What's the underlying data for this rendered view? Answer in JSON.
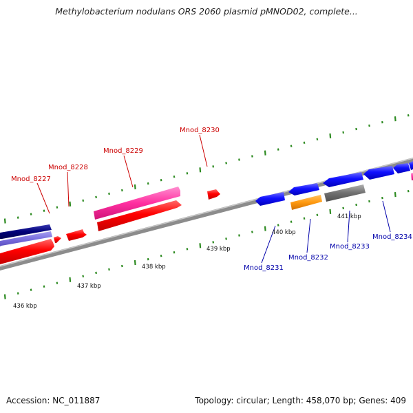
{
  "title": "Methylobacterium nodulans ORS 2060 plasmid pMNOD02, complete...",
  "footer": {
    "accession": "Accession: NC_011887",
    "summary": "Topology: circular; Length: 458,070 bp; Genes: 409"
  },
  "colors": {
    "backbone": "#808080",
    "tick": "#2e8b22",
    "red_label": "#cc0000",
    "blue_label": "#0000aa"
  },
  "kbp_labels": [
    "436 kbp",
    "437 kbp",
    "438 kbp",
    "439 kbp",
    "440 kbp",
    "441 kbp"
  ],
  "gene_labels": [
    "Mnod_8227",
    "Mnod_8228",
    "Mnod_8229",
    "Mnod_8230",
    "Mnod_8231",
    "Mnod_8232",
    "Mnod_8233",
    "Mnod_8234"
  ]
}
